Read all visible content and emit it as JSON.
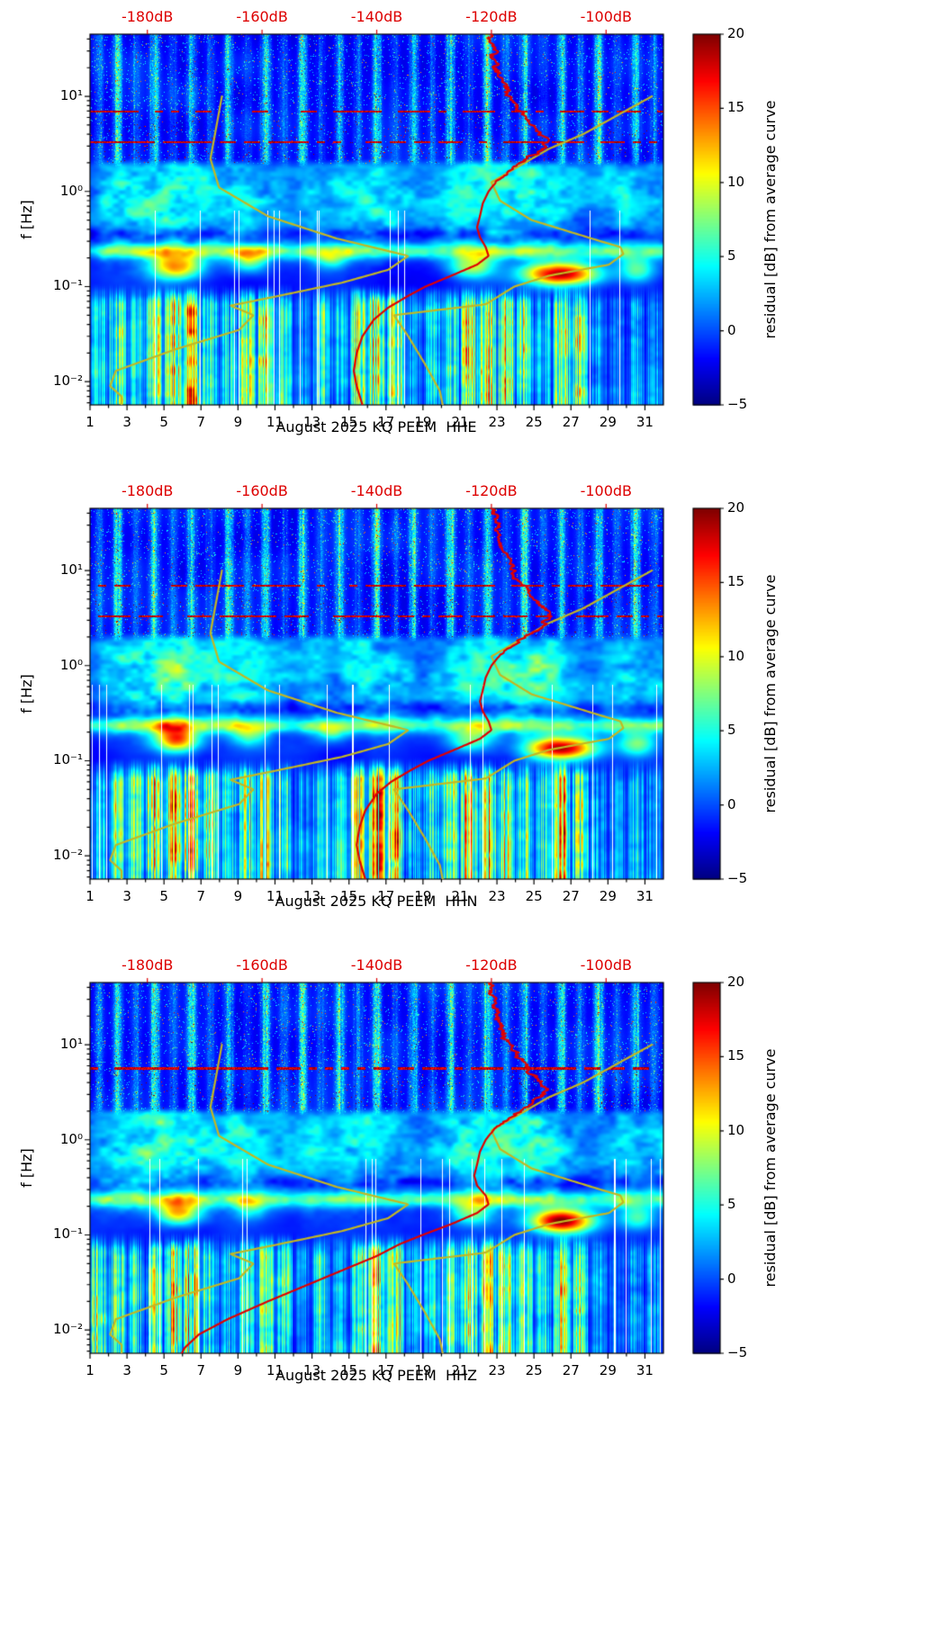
{
  "accent": {
    "axis_red": "#dd0000",
    "curve_red": "#e00000",
    "curve_yellow": "#c3b723"
  },
  "top_axis": {
    "labels": [
      "-180dB",
      "-160dB",
      "-140dB",
      "-120dB",
      "-100dB"
    ],
    "values": [
      -180,
      -160,
      -140,
      -120,
      -100
    ],
    "db_range": [
      -190,
      -90
    ]
  },
  "x_axis": {
    "tick_labels": [
      "1",
      "3",
      "5",
      "7",
      "9",
      "11",
      "13",
      "15",
      "17",
      "19",
      "21",
      "23",
      "25",
      "27",
      "29",
      "31"
    ],
    "tick_values": [
      1,
      3,
      5,
      7,
      9,
      11,
      13,
      15,
      17,
      19,
      21,
      23,
      25,
      27,
      29,
      31
    ],
    "day_range": [
      1,
      32
    ]
  },
  "y_axis": {
    "label": "f [Hz]",
    "tick_labels": [
      "10¹",
      "10⁰",
      "10⁻¹",
      "10⁻²"
    ],
    "tick_values": [
      10,
      1,
      0.1,
      0.01
    ],
    "scale": "log",
    "freq_range_hz": [
      0.0057,
      45
    ]
  },
  "colorbar": {
    "label": "residual [dB] from average curve",
    "tick_labels": [
      "20",
      "15",
      "10",
      "5",
      "0",
      "−5"
    ],
    "tick_values": [
      20,
      15,
      10,
      5,
      0,
      -5
    ],
    "range": [
      -5,
      20
    ],
    "colormap": "jet"
  },
  "panels": [
    {
      "id": "HHE",
      "xlabel": "August 2025 KQ PEEM  HHE"
    },
    {
      "id": "HHN",
      "xlabel": "August 2025 KQ PEEM  HHN"
    },
    {
      "id": "HHZ",
      "xlabel": "August 2025 KQ PEEM  HHZ"
    }
  ],
  "chart_data": {
    "type": "heatmap",
    "x": "day of August 2025 (1-32)",
    "y": "frequency f [Hz], log scale 0.0057-45",
    "z": "residual [dB] from average curve, range [-5,20], jet colormap",
    "overlay_models": {
      "low_noise_model_db_vs_hz": [
        [
          10,
          -167
        ],
        [
          2.2,
          -169
        ],
        [
          1.1,
          -167.5
        ],
        [
          0.55,
          -159
        ],
        [
          0.32,
          -147
        ],
        [
          0.21,
          -134.5
        ],
        [
          0.15,
          -138
        ],
        [
          0.11,
          -146
        ],
        [
          0.08,
          -157
        ],
        [
          0.063,
          -165.5
        ],
        [
          0.05,
          -161.5
        ],
        [
          0.035,
          -164
        ],
        [
          0.022,
          -175
        ],
        [
          0.013,
          -185.5
        ],
        [
          0.009,
          -186.5
        ],
        [
          0.007,
          -184.5
        ],
        [
          0.0057,
          -184.5
        ]
      ],
      "high_noise_model_db_vs_hz": [
        [
          10,
          -92
        ],
        [
          4,
          -104
        ],
        [
          2.8,
          -110
        ],
        [
          1.25,
          -120
        ],
        [
          0.8,
          -118.5
        ],
        [
          0.5,
          -113
        ],
        [
          0.3,
          -101
        ],
        [
          0.26,
          -97.5
        ],
        [
          0.22,
          -97
        ],
        [
          0.17,
          -99.5
        ],
        [
          0.13,
          -110
        ],
        [
          0.1,
          -116
        ],
        [
          0.065,
          -121
        ],
        [
          0.05,
          -137
        ],
        [
          0.03,
          -134.5
        ],
        [
          0.015,
          -131.5
        ],
        [
          0.008,
          -129
        ],
        [
          0.0057,
          -128.5
        ]
      ]
    },
    "subplots": [
      {
        "channel": "HHE",
        "red_median_db_vs_hz": [
          [
            45,
            -120.5
          ],
          [
            28,
            -119.5
          ],
          [
            20,
            -119
          ],
          [
            14,
            -117.5
          ],
          [
            10,
            -117
          ],
          [
            7.5,
            -115.5
          ],
          [
            6,
            -114
          ],
          [
            5,
            -113
          ],
          [
            4.2,
            -111.5
          ],
          [
            3.4,
            -110
          ],
          [
            2.8,
            -111
          ],
          [
            2.2,
            -113.5
          ],
          [
            1.7,
            -116.5
          ],
          [
            1.3,
            -119
          ],
          [
            1.0,
            -120.5
          ],
          [
            0.75,
            -121.5
          ],
          [
            0.55,
            -122
          ],
          [
            0.42,
            -122.5
          ],
          [
            0.33,
            -122
          ],
          [
            0.26,
            -121
          ],
          [
            0.21,
            -120.5
          ],
          [
            0.17,
            -122.5
          ],
          [
            0.13,
            -127
          ],
          [
            0.1,
            -131.5
          ],
          [
            0.08,
            -134.5
          ],
          [
            0.06,
            -138
          ],
          [
            0.045,
            -140.5
          ],
          [
            0.03,
            -142.5
          ],
          [
            0.02,
            -143.5
          ],
          [
            0.013,
            -144
          ],
          [
            0.009,
            -143.5
          ],
          [
            0.0057,
            -142.5
          ]
        ],
        "texture": {
          "seed": 3,
          "stripe_day_intensity": [
            5,
            9,
            4,
            10,
            3,
            9,
            4,
            8,
            3,
            10,
            4,
            9,
            3,
            8,
            4,
            10,
            3,
            9,
            4,
            9,
            3,
            10,
            4,
            9,
            3,
            9,
            4,
            10,
            3,
            9,
            4
          ],
          "storm_day_intensity": [
            7,
            12,
            9,
            13,
            16,
            17,
            11,
            7,
            12,
            14,
            10,
            4,
            9,
            6,
            13,
            18,
            15,
            5,
            7,
            10,
            14,
            16,
            15,
            11,
            7,
            14,
            12,
            5,
            4,
            6,
            5
          ],
          "plume_day_intensity": [
            3,
            6,
            7,
            8,
            9,
            8,
            7,
            6,
            7,
            6,
            5,
            4,
            6,
            5,
            6,
            7,
            6,
            5,
            4,
            5,
            7,
            8,
            8,
            7,
            8,
            7,
            5,
            4,
            5,
            6,
            5
          ],
          "red_dotted_lines_hz": [
            3.3,
            6.9
          ],
          "microseism_blobs": [
            [
              5.7,
              0.165,
              14,
              1.0,
              0.1
            ],
            [
              26.5,
              0.135,
              20,
              1.4,
              0.085
            ],
            [
              9.6,
              0.19,
              8,
              0.7,
              0.09
            ],
            [
              14.0,
              0.2,
              7,
              0.6,
              0.08
            ],
            [
              21.6,
              0.165,
              9,
              0.9,
              0.09
            ],
            [
              30.6,
              0.15,
              8,
              0.7,
              0.1
            ]
          ]
        }
      },
      {
        "channel": "HHN",
        "red_median_db_vs_hz": [
          [
            45,
            -120
          ],
          [
            28,
            -119
          ],
          [
            20,
            -118.5
          ],
          [
            14,
            -117
          ],
          [
            10,
            -116.5
          ],
          [
            7.5,
            -115
          ],
          [
            6,
            -113.5
          ],
          [
            5,
            -112.5
          ],
          [
            4.2,
            -111
          ],
          [
            3.4,
            -109.5
          ],
          [
            2.8,
            -110.5
          ],
          [
            2.2,
            -113
          ],
          [
            1.7,
            -116
          ],
          [
            1.3,
            -118.5
          ],
          [
            1.0,
            -120
          ],
          [
            0.75,
            -121
          ],
          [
            0.55,
            -121.5
          ],
          [
            0.42,
            -122
          ],
          [
            0.33,
            -121.5
          ],
          [
            0.26,
            -120.5
          ],
          [
            0.21,
            -120
          ],
          [
            0.17,
            -122
          ],
          [
            0.13,
            -126.5
          ],
          [
            0.1,
            -131
          ],
          [
            0.08,
            -134
          ],
          [
            0.06,
            -137.5
          ],
          [
            0.045,
            -140
          ],
          [
            0.03,
            -142
          ],
          [
            0.02,
            -143
          ],
          [
            0.013,
            -143.5
          ],
          [
            0.009,
            -143
          ],
          [
            0.0057,
            -142
          ]
        ],
        "texture": {
          "seed": 7,
          "stripe_day_intensity": [
            4,
            9,
            3,
            10,
            4,
            9,
            3,
            9,
            4,
            9,
            3,
            10,
            4,
            8,
            3,
            10,
            4,
            9,
            3,
            10,
            4,
            9,
            3,
            10,
            3,
            9,
            4,
            9,
            3,
            10,
            4
          ],
          "storm_day_intensity": [
            6,
            11,
            10,
            14,
            16,
            16,
            12,
            8,
            11,
            13,
            9,
            5,
            8,
            7,
            14,
            18,
            14,
            6,
            8,
            11,
            15,
            16,
            14,
            10,
            8,
            15,
            11,
            6,
            5,
            7,
            5
          ],
          "plume_day_intensity": [
            3,
            6,
            7,
            8,
            9,
            8,
            6,
            6,
            7,
            6,
            5,
            4,
            6,
            5,
            6,
            7,
            6,
            5,
            4,
            5,
            7,
            8,
            8,
            7,
            8,
            7,
            5,
            4,
            5,
            6,
            5
          ],
          "red_dotted_lines_hz": [
            3.3,
            6.9
          ],
          "microseism_blobs": [
            [
              5.7,
              0.17,
              16,
              0.8,
              0.1
            ],
            [
              26.5,
              0.135,
              20,
              1.3,
              0.085
            ],
            [
              9.6,
              0.19,
              7,
              0.7,
              0.09
            ],
            [
              14.0,
              0.2,
              6,
              0.6,
              0.08
            ],
            [
              21.6,
              0.165,
              8,
              0.9,
              0.09
            ],
            [
              30.6,
              0.15,
              8,
              0.7,
              0.1
            ]
          ]
        }
      },
      {
        "channel": "HHZ",
        "red_median_db_vs_hz": [
          [
            45,
            -120.5
          ],
          [
            28,
            -119.5
          ],
          [
            20,
            -119
          ],
          [
            14,
            -118
          ],
          [
            10,
            -117
          ],
          [
            7.5,
            -115.5
          ],
          [
            6,
            -114
          ],
          [
            5,
            -113
          ],
          [
            4.2,
            -112
          ],
          [
            3.4,
            -110.5
          ],
          [
            2.8,
            -111.5
          ],
          [
            2.2,
            -114
          ],
          [
            1.7,
            -117
          ],
          [
            1.3,
            -119.5
          ],
          [
            1.0,
            -121
          ],
          [
            0.75,
            -122
          ],
          [
            0.55,
            -122.5
          ],
          [
            0.42,
            -123
          ],
          [
            0.33,
            -122.5
          ],
          [
            0.26,
            -121
          ],
          [
            0.21,
            -120.5
          ],
          [
            0.17,
            -122.5
          ],
          [
            0.13,
            -127
          ],
          [
            0.1,
            -132
          ],
          [
            0.08,
            -136
          ],
          [
            0.06,
            -140
          ],
          [
            0.045,
            -145
          ],
          [
            0.03,
            -152
          ],
          [
            0.02,
            -159
          ],
          [
            0.013,
            -166
          ],
          [
            0.009,
            -171
          ],
          [
            0.0065,
            -173.5
          ],
          [
            0.0057,
            -174
          ]
        ],
        "texture": {
          "seed": 11,
          "stripe_day_intensity": [
            5,
            8,
            4,
            10,
            3,
            9,
            4,
            9,
            3,
            10,
            4,
            9,
            3,
            9,
            4,
            10,
            3,
            8,
            4,
            9,
            3,
            10,
            4,
            9,
            3,
            9,
            4,
            10,
            3,
            9,
            4
          ],
          "storm_day_intensity": [
            14,
            10,
            8,
            12,
            15,
            16,
            10,
            6,
            10,
            12,
            9,
            4,
            8,
            6,
            12,
            16,
            13,
            5,
            7,
            9,
            13,
            15,
            14,
            10,
            7,
            13,
            11,
            5,
            4,
            6,
            5
          ],
          "plume_day_intensity": [
            4,
            6,
            7,
            8,
            9,
            8,
            7,
            6,
            7,
            6,
            5,
            4,
            6,
            5,
            6,
            7,
            6,
            5,
            4,
            5,
            7,
            8,
            8,
            7,
            8,
            7,
            5,
            4,
            5,
            6,
            5
          ],
          "red_dotted_lines_hz": [
            5.6
          ],
          "microseism_blobs": [
            [
              5.8,
              0.17,
              12,
              0.8,
              0.09
            ],
            [
              26.5,
              0.14,
              21,
              1.2,
              0.09
            ],
            [
              9.6,
              0.19,
              6,
              0.6,
              0.08
            ],
            [
              21.6,
              0.17,
              7,
              0.8,
              0.09
            ],
            [
              30.6,
              0.15,
              7,
              0.7,
              0.1
            ]
          ]
        }
      }
    ]
  }
}
